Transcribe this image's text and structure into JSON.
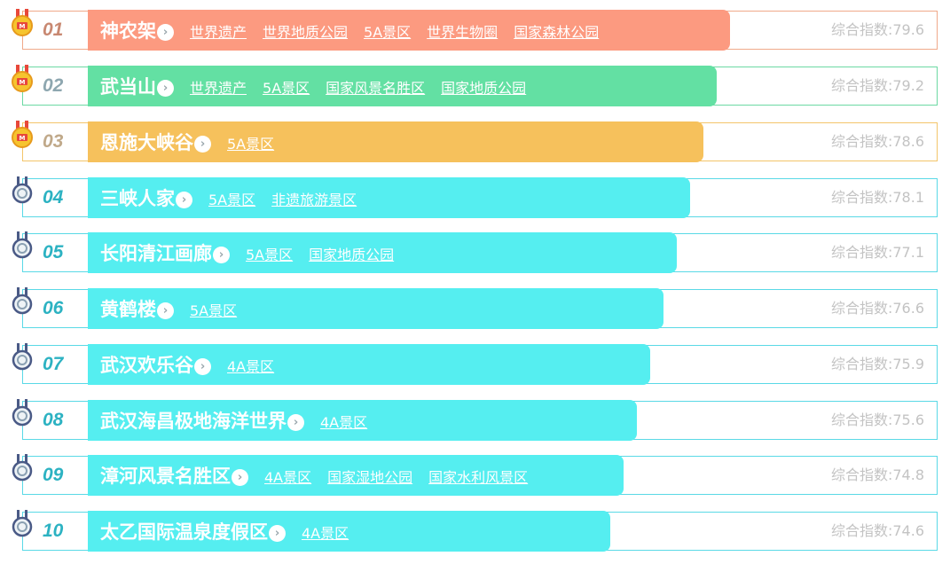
{
  "index_label": "综合指数:",
  "colors": {
    "gold": "#fc9a80",
    "silver": "#63e0a3",
    "bronze": "#f6c15c",
    "default": "#55eef0"
  },
  "items": [
    {
      "rank": "01",
      "name": "神农架",
      "tags": [
        "世界遗产",
        "世界地质公园",
        "5A景区",
        "世界生物圈",
        "国家森林公园"
      ],
      "score": "79.6",
      "medal": "gold-medal-icon"
    },
    {
      "rank": "02",
      "name": "武当山",
      "tags": [
        "世界遗产",
        "5A景区",
        "国家风景名胜区",
        "国家地质公园"
      ],
      "score": "79.2",
      "medal": "gold-medal-icon"
    },
    {
      "rank": "03",
      "name": "恩施大峡谷",
      "tags": [
        "5A景区"
      ],
      "score": "78.6",
      "medal": "gold-medal-icon"
    },
    {
      "rank": "04",
      "name": "三峡人家",
      "tags": [
        "5A景区",
        "非遗旅游景区"
      ],
      "score": "78.1",
      "medal": "silver-medal-icon"
    },
    {
      "rank": "05",
      "name": "长阳清江画廊",
      "tags": [
        "5A景区",
        "国家地质公园"
      ],
      "score": "77.1",
      "medal": "silver-medal-icon"
    },
    {
      "rank": "06",
      "name": "黄鹤楼",
      "tags": [
        "5A景区"
      ],
      "score": "76.6",
      "medal": "silver-medal-icon"
    },
    {
      "rank": "07",
      "name": "武汉欢乐谷",
      "tags": [
        "4A景区"
      ],
      "score": "75.9",
      "medal": "silver-medal-icon"
    },
    {
      "rank": "08",
      "name": "武汉海昌极地海洋世界",
      "tags": [
        "4A景区"
      ],
      "score": "75.6",
      "medal": "silver-medal-icon"
    },
    {
      "rank": "09",
      "name": "漳河风景名胜区",
      "tags": [
        "4A景区",
        "国家湿地公园",
        "国家水利风景区"
      ],
      "score": "74.8",
      "medal": "silver-medal-icon"
    },
    {
      "rank": "10",
      "name": "太乙国际温泉度假区",
      "tags": [
        "4A景区"
      ],
      "score": "74.6",
      "medal": "silver-medal-icon"
    }
  ]
}
